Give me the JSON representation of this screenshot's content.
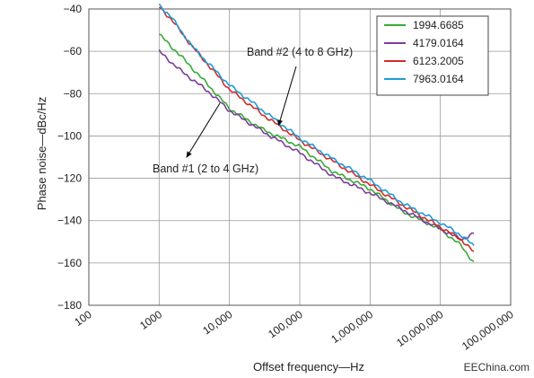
{
  "chart_data": {
    "type": "line",
    "title": "",
    "xlabel": "Offset frequency—Hz",
    "ylabel": "Phase noise—dBc/Hz",
    "xscale": "log",
    "xlim": [
      100,
      100000000
    ],
    "ylim": [
      -180,
      -40
    ],
    "x_tick_labels": [
      "100",
      "1000",
      "10,000",
      "100,000",
      "1,000,000",
      "10,000,000",
      "100,000,000"
    ],
    "x_tick_values": [
      100,
      1000,
      10000,
      100000,
      1000000,
      10000000,
      100000000
    ],
    "y_ticks": [
      -40,
      -60,
      -80,
      -100,
      -120,
      -140,
      -160,
      -180
    ],
    "grid": true,
    "legend_position": "top-right",
    "series": [
      {
        "name": "1994.6685",
        "color": "#3aaa35",
        "x": [
          1000,
          2000,
          5000,
          10000,
          30000,
          100000,
          300000,
          1000000,
          3000000,
          10000000,
          20000000,
          30000000
        ],
        "y": [
          -52,
          -62,
          -76,
          -87,
          -97,
          -105,
          -117,
          -125,
          -136,
          -144,
          -152,
          -160
        ]
      },
      {
        "name": "4179.0164",
        "color": "#7b3f98",
        "x": [
          1000,
          2000,
          5000,
          10000,
          30000,
          100000,
          300000,
          1000000,
          3000000,
          10000000,
          20000000,
          30000000
        ],
        "y": [
          -60,
          -69,
          -79,
          -88,
          -98,
          -108,
          -119,
          -127,
          -135,
          -144,
          -149,
          -146
        ]
      },
      {
        "name": "6123.2005",
        "color": "#d42b2b",
        "x": [
          1000,
          1500,
          3000,
          10000,
          30000,
          100000,
          300000,
          1000000,
          3000000,
          10000000,
          20000000,
          30000000
        ],
        "y": [
          -39,
          -45,
          -58,
          -78,
          -90,
          -102,
          -112,
          -123,
          -133,
          -143,
          -149,
          -155
        ]
      },
      {
        "name": "7963.0164",
        "color": "#1f9bd7",
        "x": [
          1000,
          1500,
          3000,
          10000,
          30000,
          100000,
          300000,
          1000000,
          3000000,
          10000000,
          20000000,
          30000000
        ],
        "y": [
          -38,
          -44,
          -58,
          -76,
          -88,
          -101,
          -111,
          -121,
          -132,
          -141,
          -147,
          -152
        ]
      }
    ],
    "annotations": [
      {
        "text": "Band #2 (4 to 8 GHz)",
        "points_to": [
          50000,
          -95
        ],
        "label_at": [
          1000000,
          -62
        ]
      },
      {
        "text": "Band #1 (2 to 4 GHz)",
        "points_to": [
          8000,
          -82
        ],
        "label_at": [
          100000,
          -118
        ]
      }
    ]
  },
  "watermark": "EEChina.com"
}
